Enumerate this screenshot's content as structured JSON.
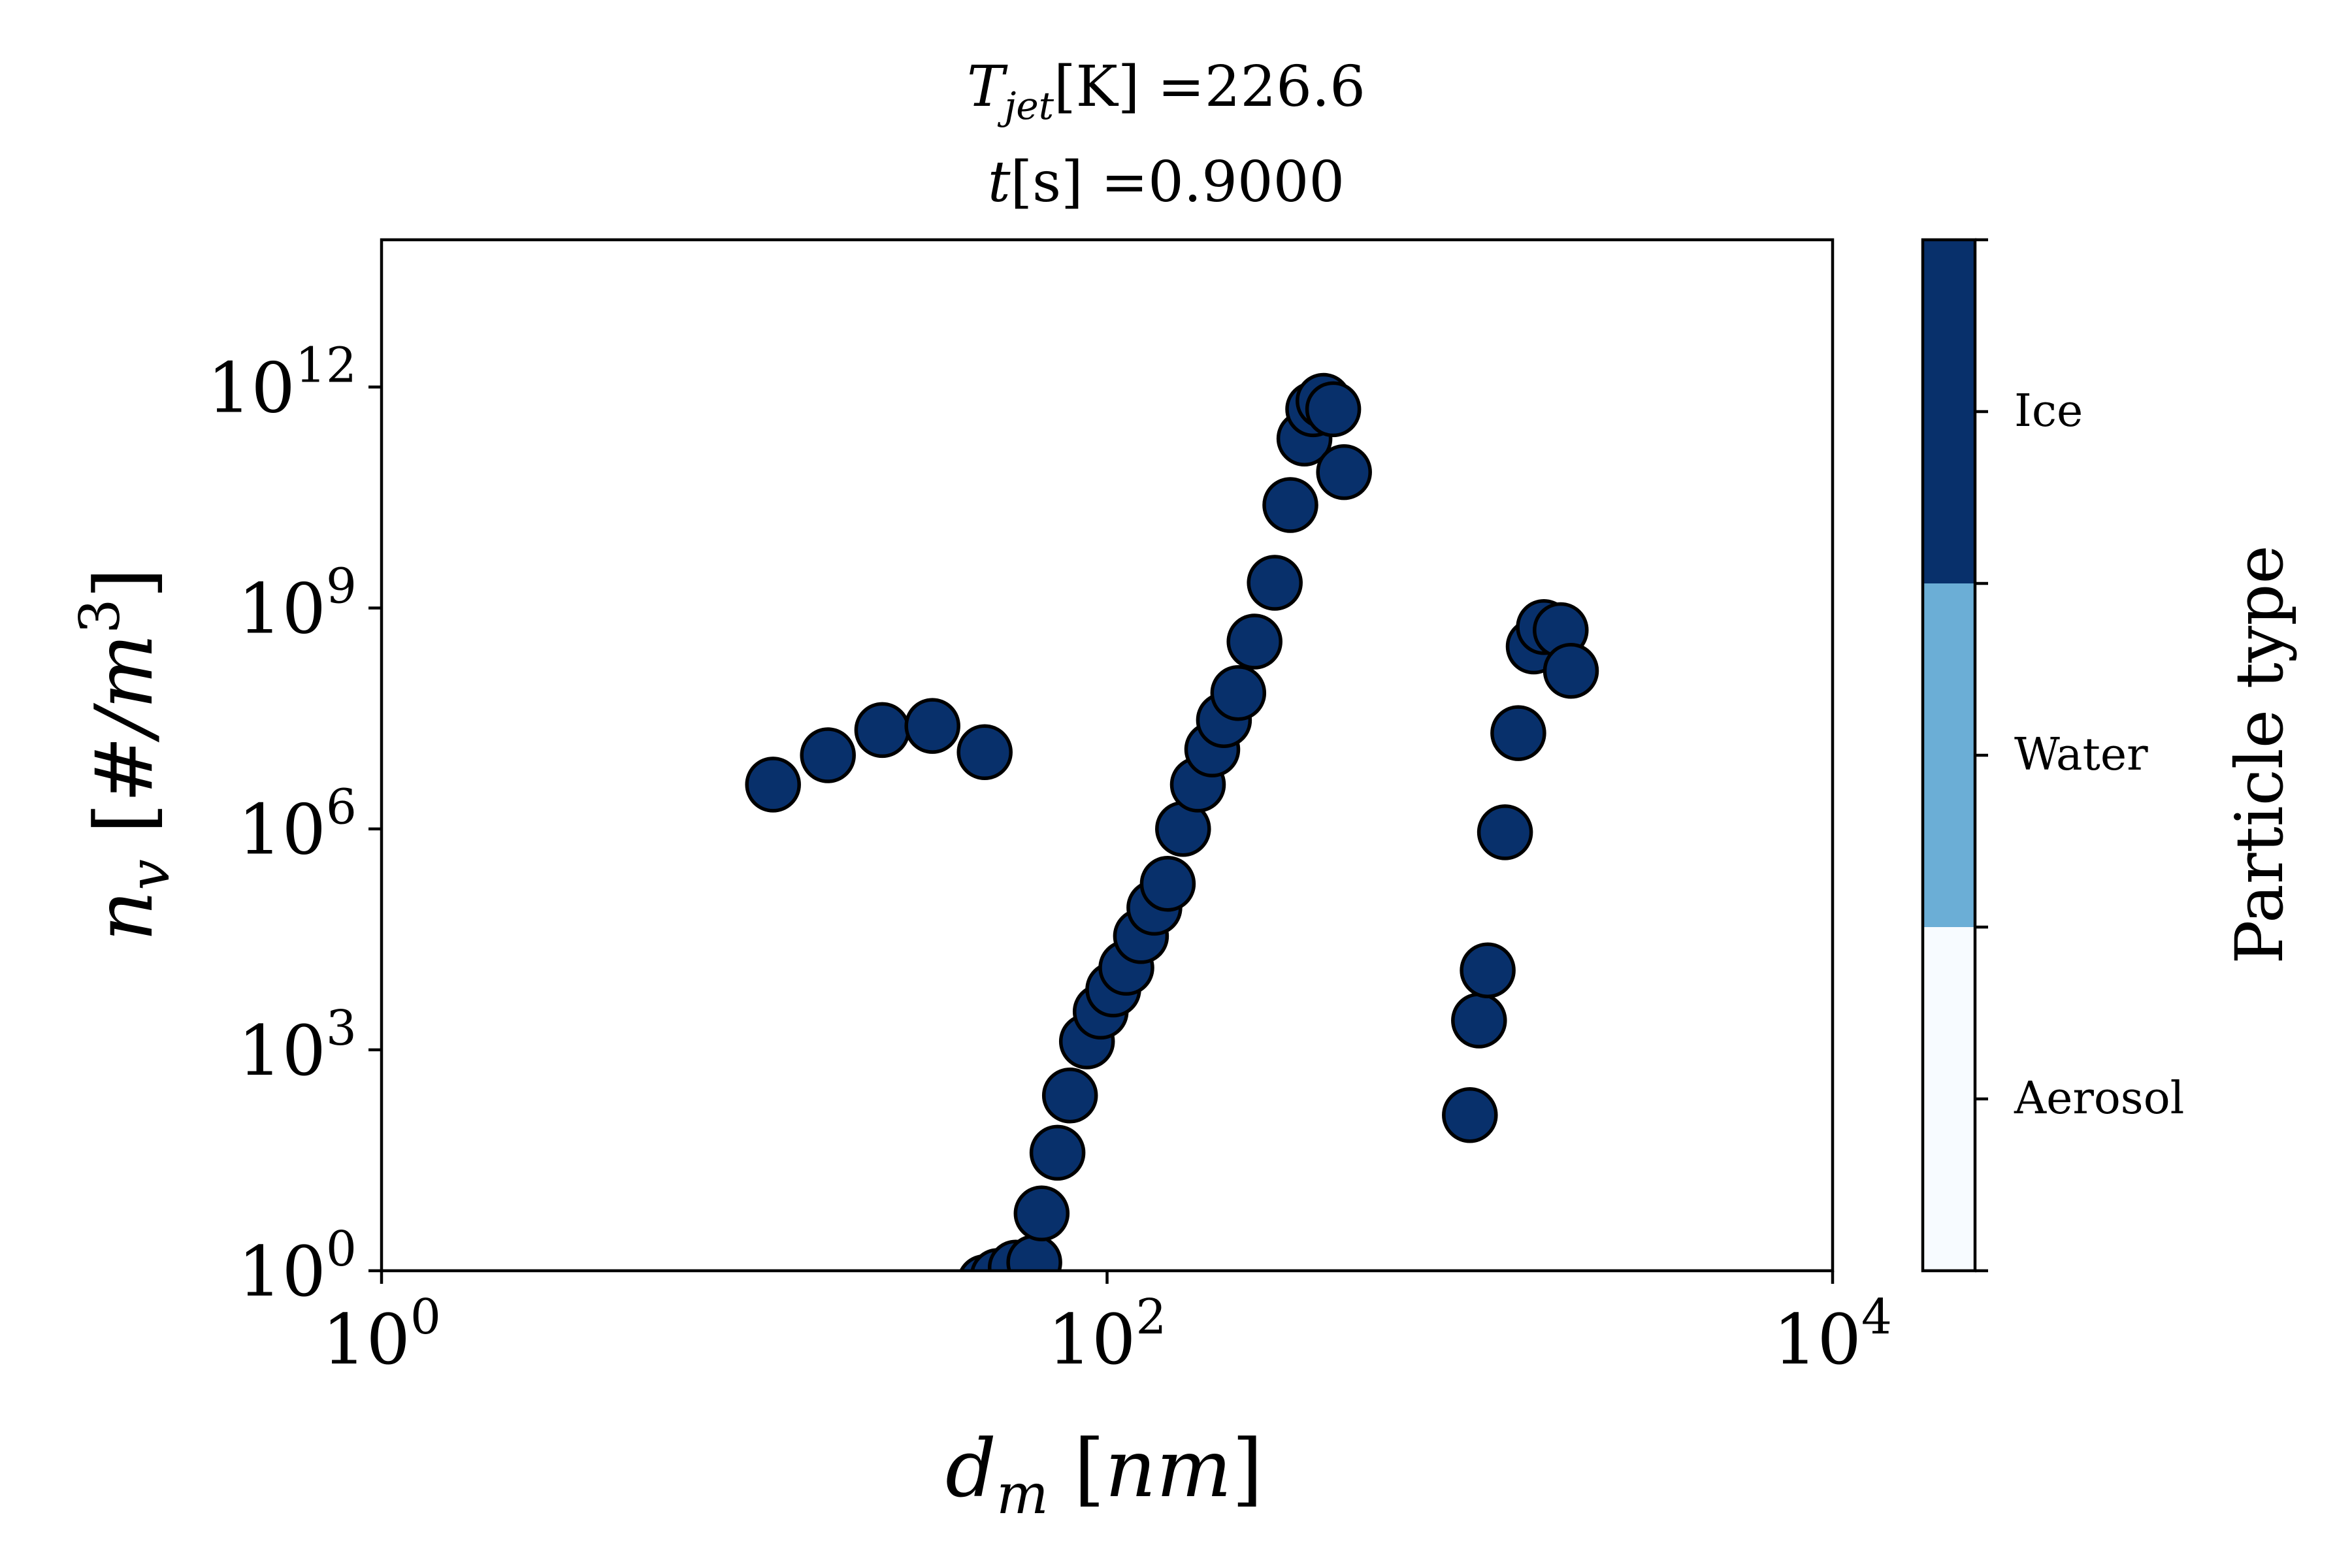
{
  "chart_data": {
    "type": "scatter",
    "title_line1": {
      "var": "T",
      "sub": "jet",
      "unit": "[K]",
      "eq": " =226.6"
    },
    "title_line2": {
      "var": "t",
      "unit": "[s]",
      "eq": " =0.9000"
    },
    "xlabel": {
      "var": "d",
      "sub": "m",
      "unit": "nm"
    },
    "ylabel": {
      "var": "n",
      "sub": "v",
      "unit_pre": "#/m",
      "unit_sup": "3"
    },
    "x_scale": "log",
    "y_scale": "log",
    "xlim": [
      1,
      10000
    ],
    "ylim": [
      1,
      100000000000000
    ],
    "x_ticks": [
      {
        "value": 1,
        "base": "10",
        "exp": "0"
      },
      {
        "value": 100,
        "base": "10",
        "exp": "2"
      },
      {
        "value": 10000,
        "base": "10",
        "exp": "4"
      }
    ],
    "y_ticks": [
      {
        "value": 1,
        "base": "10",
        "exp": "0"
      },
      {
        "value": 1000,
        "base": "10",
        "exp": "3"
      },
      {
        "value": 1000000,
        "base": "10",
        "exp": "6"
      },
      {
        "value": 1000000000,
        "base": "10",
        "exp": "9"
      },
      {
        "value": 1000000000000,
        "base": "10",
        "exp": "12"
      }
    ],
    "marker_color": "#08306b",
    "marker_edge_color": "#000000",
    "series": [
      {
        "category": "Ice",
        "points": [
          [
            12,
            4000000
          ],
          [
            17,
            10000000
          ],
          [
            24,
            22000000
          ],
          [
            33,
            25000000
          ],
          [
            46,
            11000000
          ],
          [
            46,
            0.7
          ],
          [
            50,
            0.85
          ],
          [
            56,
            1.1
          ],
          [
            63,
            1.3
          ],
          [
            66,
            6
          ],
          [
            73,
            40
          ],
          [
            79,
            240
          ],
          [
            88,
            1300
          ],
          [
            96,
            3300
          ],
          [
            104,
            6600
          ],
          [
            113,
            13000
          ],
          [
            124,
            35000
          ],
          [
            135,
            85000
          ],
          [
            147,
            180000
          ],
          [
            162,
            1000000
          ],
          [
            178,
            4000000
          ],
          [
            195,
            12000000
          ],
          [
            210,
            30000000
          ],
          [
            230,
            70000000
          ],
          [
            255,
            350000000
          ],
          [
            290,
            2200000000
          ],
          [
            320,
            25000000000
          ],
          [
            350,
            200000000000
          ],
          [
            370,
            500000000000
          ],
          [
            395,
            650000000000
          ],
          [
            420,
            500000000000
          ],
          [
            450,
            70000000000
          ],
          [
            1000,
            130
          ],
          [
            1060,
            2500
          ],
          [
            1120,
            12000
          ],
          [
            1250,
            900000
          ],
          [
            1360,
            20000000
          ],
          [
            1500,
            300000000
          ],
          [
            1600,
            550000000
          ],
          [
            1780,
            500000000
          ],
          [
            1900,
            140000000
          ]
        ]
      }
    ],
    "colorbar": {
      "label": "Particle type",
      "categories": [
        {
          "label": "Ice",
          "color": "#08306b"
        },
        {
          "label": "Water",
          "color": "#6baed6"
        },
        {
          "label": "Aerosol",
          "color": "#f7fbff"
        }
      ]
    }
  }
}
